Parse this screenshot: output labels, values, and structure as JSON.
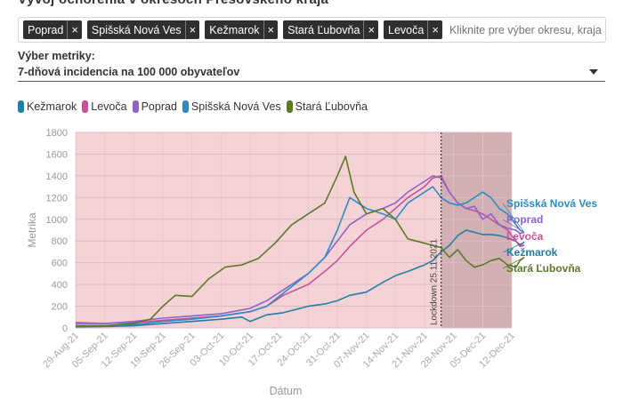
{
  "page": {
    "title_cut": "Vývoj ochorenia v okresoch Prešovského kraja"
  },
  "selector": {
    "chips": [
      "Poprad",
      "Spišská Nová Ves",
      "Kežmarok",
      "Stará Ľubovňa",
      "Levoča"
    ],
    "remove_glyph": "×",
    "placeholder": "Kliknite pre výber okresu, kraja alebo celého Slovenska"
  },
  "metric": {
    "label": "Výber metriky:",
    "value": "7-dňová incidencia na 100 000 obyvateľov"
  },
  "colors": {
    "Kežmarok": "#1f7fa6",
    "Levoča": "#c6529c",
    "Poprad": "#8f63c9",
    "Spišská Nová Ves": "#2d8bc5",
    "Stará Ľubovňa": "#5b7a26",
    "background_pre": "#f5d2d6",
    "background_lockdown": "#c9a2a6"
  },
  "chart_data": {
    "type": "line",
    "xlabel": "Dátum",
    "ylabel": "Metrika",
    "ylim": [
      0,
      1800
    ],
    "yticks": [
      0,
      200,
      400,
      600,
      800,
      1000,
      1200,
      1400,
      1600,
      1800
    ],
    "x_dates": [
      "2021-08-29",
      "2021-09-05",
      "2021-09-12",
      "2021-09-19",
      "2021-09-26",
      "2021-10-03",
      "2021-10-10",
      "2021-10-17",
      "2021-10-24",
      "2021-10-31",
      "2021-11-07",
      "2021-11-14",
      "2021-11-21",
      "2021-11-28",
      "2021-12-05",
      "2021-12-12"
    ],
    "x_tick_labels": [
      "29-Aug-21",
      "05-Sep-21",
      "12-Sep-21",
      "19-Sep-21",
      "26-Sep-21",
      "03-Oct-21",
      "10-Oct-21",
      "17-Oct-21",
      "24-Oct-21",
      "31-Oct-21",
      "07-Nov-21",
      "14-Nov-21",
      "21-Nov-21",
      "28-Nov-21",
      "05-Dec-21",
      "12-Dec-21"
    ],
    "grid": true,
    "legend_position": "top-left",
    "annotations": [
      {
        "date": "2021-11-25",
        "text": "Lockdown 25.11.2021"
      }
    ],
    "lockdown_start": "2021-11-25",
    "series": [
      {
        "name": "Kežmarok",
        "values": [
          [
            0,
            10
          ],
          [
            7,
            12
          ],
          [
            14,
            20
          ],
          [
            21,
            40
          ],
          [
            28,
            60
          ],
          [
            35,
            80
          ],
          [
            40,
            100
          ],
          [
            42,
            60
          ],
          [
            46,
            120
          ],
          [
            50,
            140
          ],
          [
            56,
            200
          ],
          [
            60,
            220
          ],
          [
            63,
            250
          ],
          [
            66,
            300
          ],
          [
            70,
            330
          ],
          [
            74,
            420
          ],
          [
            77,
            480
          ],
          [
            80,
            520
          ],
          [
            84,
            580
          ],
          [
            86,
            620
          ],
          [
            88,
            700
          ],
          [
            90,
            760
          ],
          [
            92,
            850
          ],
          [
            94,
            900
          ],
          [
            96,
            880
          ],
          [
            98,
            860
          ],
          [
            100,
            860
          ],
          [
            102,
            850
          ],
          [
            104,
            830
          ],
          [
            106,
            800
          ],
          [
            107,
            760
          ],
          [
            108,
            790
          ]
        ]
      },
      {
        "name": "Levoča",
        "values": [
          [
            0,
            50
          ],
          [
            7,
            40
          ],
          [
            14,
            50
          ],
          [
            21,
            70
          ],
          [
            28,
            90
          ],
          [
            35,
            110
          ],
          [
            42,
            150
          ],
          [
            46,
            200
          ],
          [
            50,
            300
          ],
          [
            56,
            400
          ],
          [
            60,
            520
          ],
          [
            63,
            620
          ],
          [
            66,
            750
          ],
          [
            70,
            900
          ],
          [
            74,
            1000
          ],
          [
            77,
            1100
          ],
          [
            80,
            1200
          ],
          [
            84,
            1300
          ],
          [
            86,
            1380
          ],
          [
            88,
            1400
          ],
          [
            90,
            1250
          ],
          [
            92,
            1150
          ],
          [
            94,
            1100
          ],
          [
            96,
            1080
          ],
          [
            98,
            1050
          ],
          [
            100,
            1000
          ],
          [
            102,
            950
          ],
          [
            104,
            900
          ],
          [
            106,
            800
          ],
          [
            107,
            750
          ],
          [
            108,
            760
          ]
        ]
      },
      {
        "name": "Poprad",
        "values": [
          [
            0,
            40
          ],
          [
            7,
            40
          ],
          [
            14,
            60
          ],
          [
            21,
            90
          ],
          [
            28,
            110
          ],
          [
            35,
            130
          ],
          [
            42,
            180
          ],
          [
            46,
            250
          ],
          [
            50,
            350
          ],
          [
            56,
            500
          ],
          [
            60,
            650
          ],
          [
            63,
            800
          ],
          [
            66,
            950
          ],
          [
            70,
            1050
          ],
          [
            74,
            1100
          ],
          [
            77,
            1150
          ],
          [
            80,
            1250
          ],
          [
            84,
            1350
          ],
          [
            86,
            1400
          ],
          [
            88,
            1380
          ],
          [
            90,
            1250
          ],
          [
            92,
            1150
          ],
          [
            94,
            1100
          ],
          [
            96,
            1120
          ],
          [
            98,
            1000
          ],
          [
            100,
            1050
          ],
          [
            102,
            950
          ],
          [
            104,
            920
          ],
          [
            106,
            900
          ],
          [
            107,
            870
          ],
          [
            108,
            880
          ]
        ]
      },
      {
        "name": "Spišská Nová Ves",
        "values": [
          [
            0,
            20
          ],
          [
            7,
            20
          ],
          [
            14,
            30
          ],
          [
            21,
            60
          ],
          [
            28,
            80
          ],
          [
            35,
            110
          ],
          [
            42,
            150
          ],
          [
            46,
            200
          ],
          [
            50,
            320
          ],
          [
            56,
            500
          ],
          [
            60,
            650
          ],
          [
            63,
            900
          ],
          [
            66,
            1200
          ],
          [
            70,
            1100
          ],
          [
            74,
            1050
          ],
          [
            77,
            1000
          ],
          [
            80,
            1150
          ],
          [
            84,
            1250
          ],
          [
            86,
            1300
          ],
          [
            88,
            1200
          ],
          [
            90,
            1150
          ],
          [
            92,
            1130
          ],
          [
            94,
            1150
          ],
          [
            96,
            1200
          ],
          [
            98,
            1250
          ],
          [
            100,
            1200
          ],
          [
            102,
            1100
          ],
          [
            104,
            1050
          ],
          [
            106,
            950
          ],
          [
            107,
            900
          ],
          [
            108,
            880
          ]
        ]
      },
      {
        "name": "Stará Ľubovňa",
        "values": [
          [
            0,
            20
          ],
          [
            7,
            20
          ],
          [
            14,
            40
          ],
          [
            18,
            80
          ],
          [
            21,
            200
          ],
          [
            24,
            300
          ],
          [
            28,
            290
          ],
          [
            32,
            450
          ],
          [
            36,
            560
          ],
          [
            40,
            580
          ],
          [
            44,
            640
          ],
          [
            48,
            780
          ],
          [
            52,
            950
          ],
          [
            56,
            1050
          ],
          [
            60,
            1150
          ],
          [
            63,
            1400
          ],
          [
            65,
            1580
          ],
          [
            67,
            1250
          ],
          [
            70,
            1050
          ],
          [
            74,
            1100
          ],
          [
            77,
            1000
          ],
          [
            80,
            820
          ],
          [
            84,
            780
          ],
          [
            86,
            760
          ],
          [
            88,
            740
          ],
          [
            90,
            650
          ],
          [
            92,
            720
          ],
          [
            94,
            620
          ],
          [
            96,
            560
          ],
          [
            98,
            580
          ],
          [
            100,
            620
          ],
          [
            102,
            640
          ],
          [
            104,
            580
          ],
          [
            106,
            560
          ],
          [
            107,
            620
          ],
          [
            108,
            650
          ]
        ]
      }
    ],
    "end_labels": [
      {
        "text": "Spišská Nová Ves",
        "value": 880
      },
      {
        "text": "Poprad",
        "value": 880
      },
      {
        "text": "Levoča",
        "value": 760
      },
      {
        "text": "Kežmarok",
        "value": 790
      },
      {
        "text": "Stará Ľubovňa",
        "value": 650
      }
    ]
  }
}
